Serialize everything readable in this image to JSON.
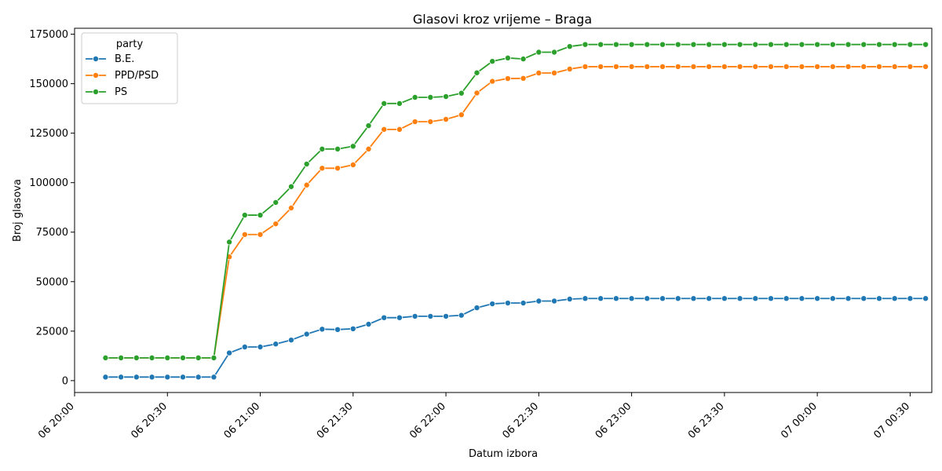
{
  "chart_data": {
    "type": "line",
    "title": "Glasovi kroz vrijeme – Braga",
    "xlabel": "Datum izbora",
    "ylabel": "Broj glasova",
    "legend_title": "party",
    "legend_position": "top-left",
    "grid": false,
    "ylim": [
      -6000,
      178000
    ],
    "xlim": [
      "06 20:00",
      "07 00:37"
    ],
    "y_ticks": [
      0,
      25000,
      50000,
      75000,
      100000,
      125000,
      150000,
      175000
    ],
    "x_ticks": [
      "06 20:00",
      "06 20:30",
      "06 21:00",
      "06 21:30",
      "06 22:00",
      "06 22:30",
      "06 23:00",
      "06 23:30",
      "07 00:00",
      "07 00:30"
    ],
    "x": [
      "06 20:10",
      "06 20:15",
      "06 20:20",
      "06 20:25",
      "06 20:30",
      "06 20:35",
      "06 20:40",
      "06 20:45",
      "06 20:50",
      "06 20:55",
      "06 21:00",
      "06 21:05",
      "06 21:10",
      "06 21:15",
      "06 21:20",
      "06 21:25",
      "06 21:30",
      "06 21:35",
      "06 21:40",
      "06 21:45",
      "06 21:50",
      "06 21:55",
      "06 22:00",
      "06 22:05",
      "06 22:10",
      "06 22:15",
      "06 22:20",
      "06 22:25",
      "06 22:30",
      "06 22:35",
      "06 22:40",
      "06 22:45",
      "06 22:50",
      "06 22:55",
      "06 23:00",
      "06 23:05",
      "06 23:10",
      "06 23:15",
      "06 23:20",
      "06 23:25",
      "06 23:30",
      "06 23:35",
      "06 23:40",
      "06 23:45",
      "06 23:50",
      "06 23:55",
      "07 00:00",
      "07 00:05",
      "07 00:10",
      "07 00:15",
      "07 00:20",
      "07 00:25",
      "07 00:30",
      "07 00:35"
    ],
    "series": [
      {
        "name": "B.E.",
        "color": "#1f77b4",
        "values": [
          1800,
          1800,
          1800,
          1800,
          1800,
          1800,
          1800,
          1800,
          14000,
          17000,
          17000,
          18500,
          20500,
          23500,
          26000,
          25800,
          26200,
          28500,
          31800,
          31800,
          32500,
          32500,
          32500,
          33000,
          36800,
          38800,
          39200,
          39200,
          40200,
          40200,
          41200,
          41500,
          41500,
          41500,
          41500,
          41500,
          41500,
          41500,
          41500,
          41500,
          41500,
          41500,
          41500,
          41500,
          41500,
          41500,
          41500,
          41500,
          41500,
          41500,
          41500,
          41500,
          41500,
          41500
        ]
      },
      {
        "name": "PPD/PSD",
        "color": "#ff7f0e",
        "values": [
          11500,
          11500,
          11500,
          11500,
          11500,
          11500,
          11500,
          11500,
          62500,
          73800,
          73800,
          79200,
          87200,
          98800,
          107300,
          107300,
          109000,
          117000,
          126900,
          126900,
          130800,
          130800,
          132000,
          134300,
          145300,
          151200,
          152600,
          152700,
          155400,
          155400,
          157400,
          158600,
          158600,
          158600,
          158600,
          158600,
          158600,
          158600,
          158600,
          158600,
          158600,
          158600,
          158600,
          158600,
          158600,
          158600,
          158600,
          158600,
          158600,
          158600,
          158600,
          158600,
          158600,
          158600
        ]
      },
      {
        "name": "PS",
        "color": "#2ca02c",
        "values": [
          11500,
          11500,
          11500,
          11500,
          11500,
          11500,
          11500,
          11500,
          70000,
          83600,
          83600,
          90000,
          98000,
          109400,
          117000,
          117000,
          118400,
          128800,
          140000,
          140000,
          143100,
          143100,
          143500,
          145200,
          155500,
          161300,
          163000,
          162500,
          165900,
          165900,
          168800,
          169800,
          169800,
          169800,
          169800,
          169800,
          169800,
          169800,
          169800,
          169800,
          169800,
          169800,
          169800,
          169800,
          169800,
          169800,
          169800,
          169800,
          169800,
          169800,
          169800,
          169800,
          169800,
          169800
        ]
      }
    ]
  }
}
